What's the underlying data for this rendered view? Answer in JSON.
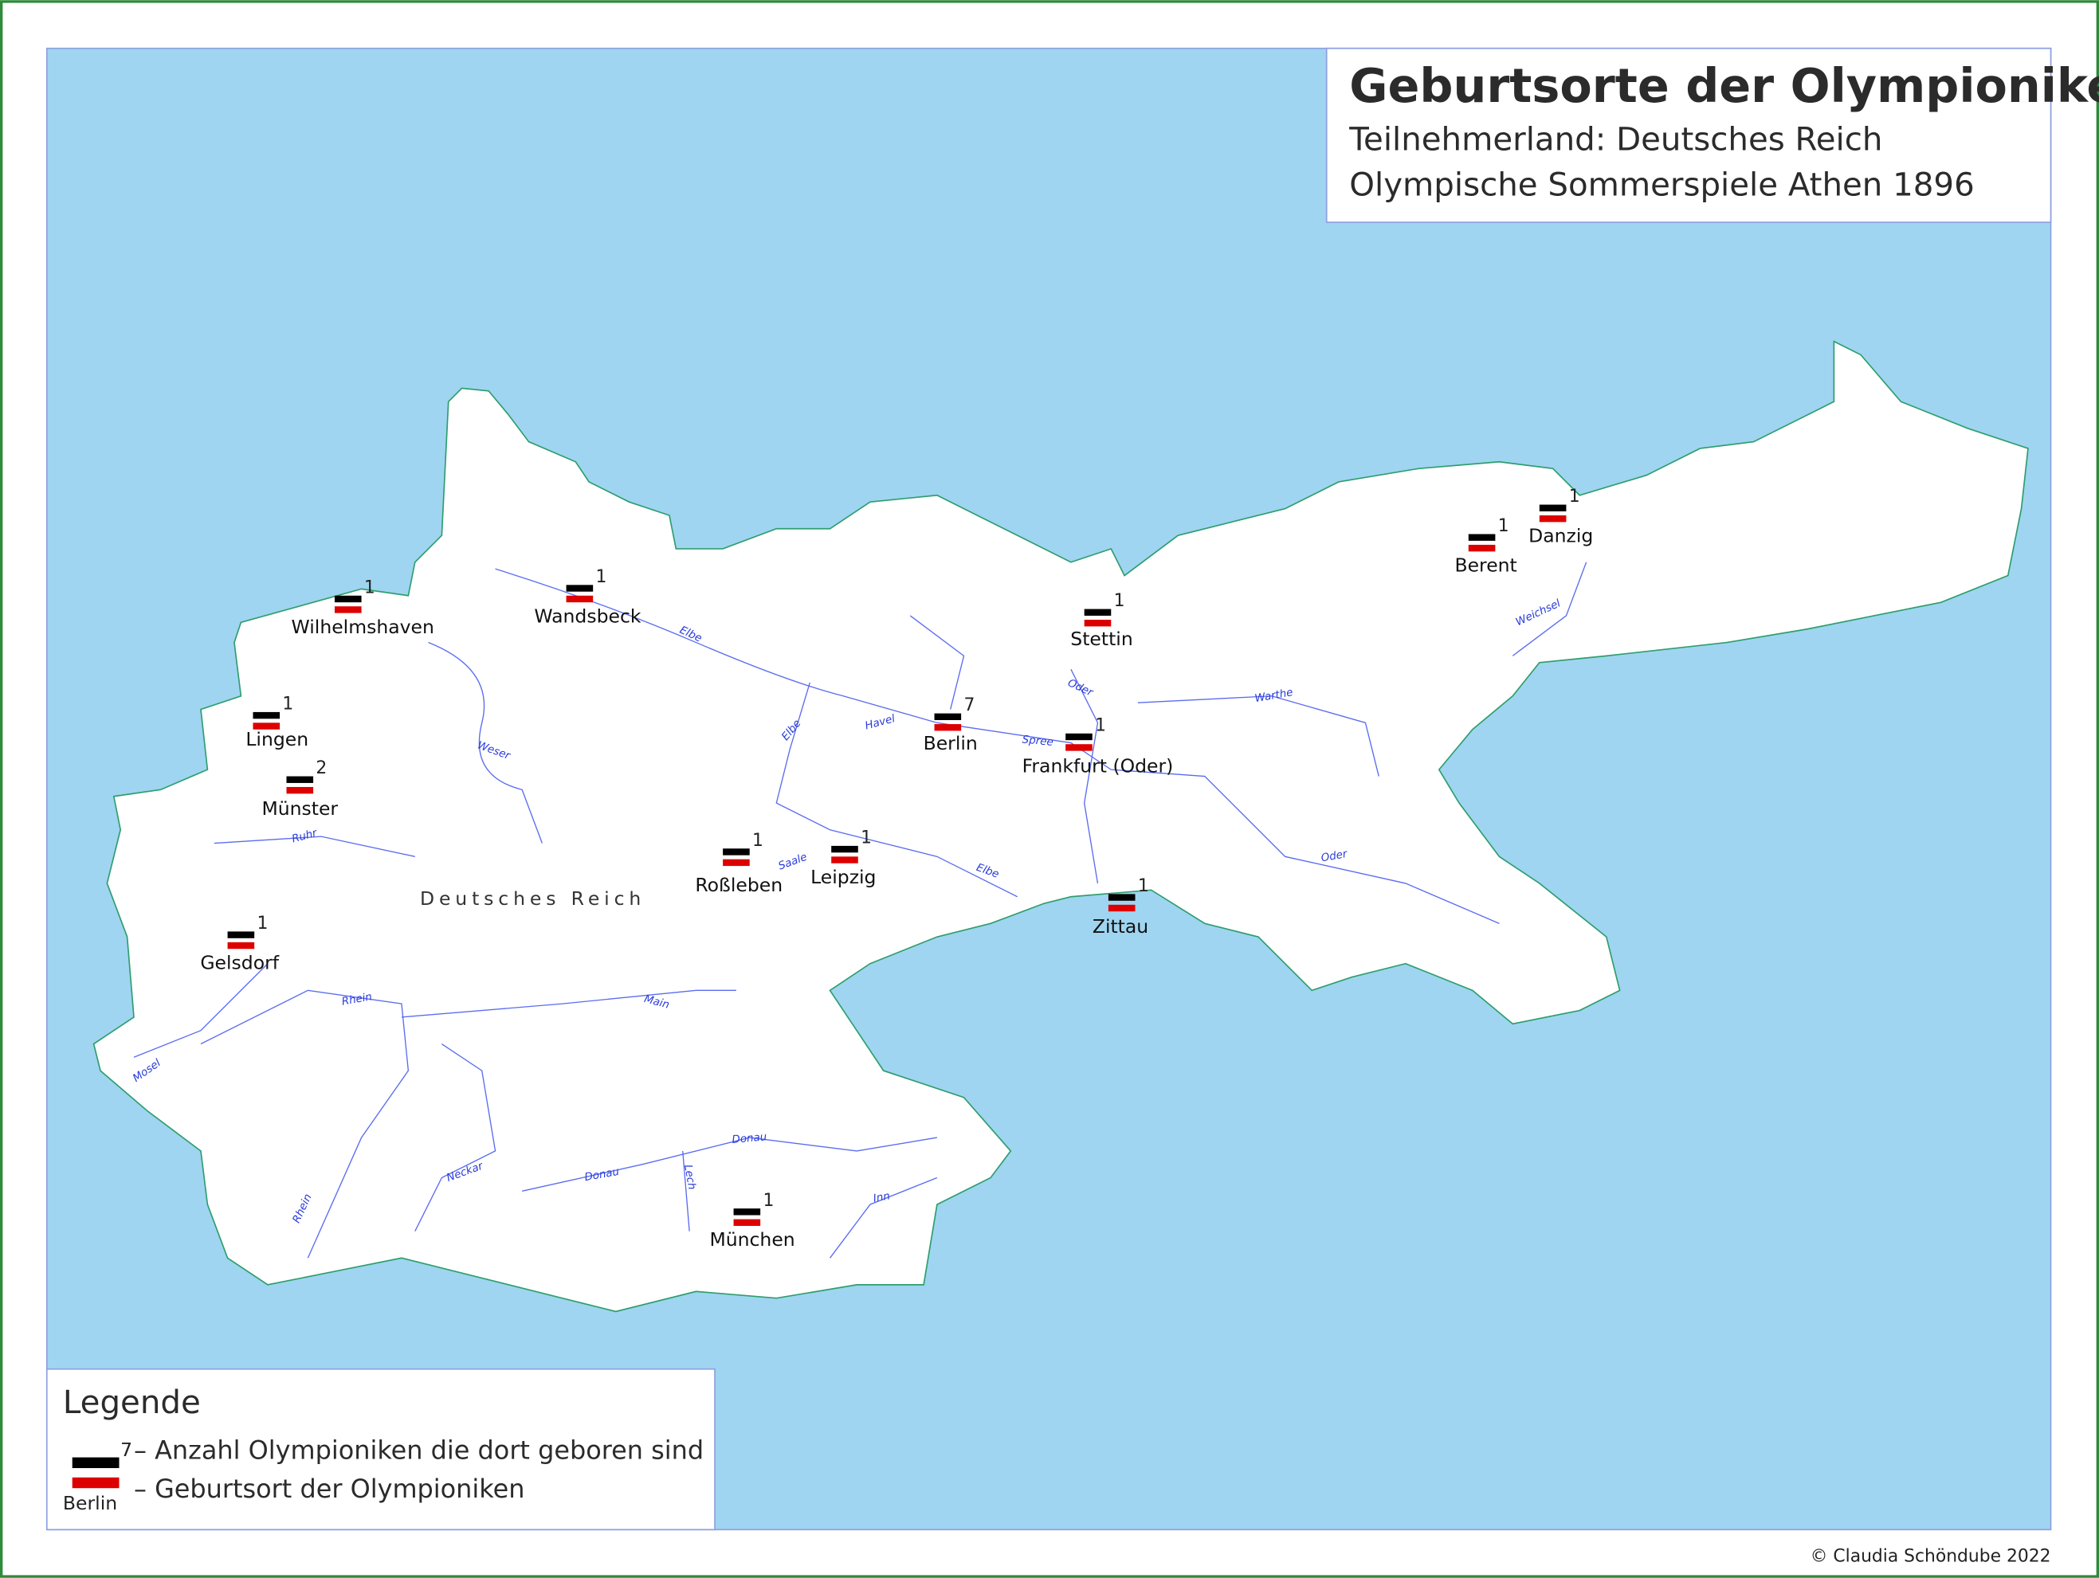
{
  "title": {
    "heading": "Geburtsorte der Olympioniken",
    "line1": "Teilnehmerland: Deutsches Reich",
    "line2": "Olympische Sommerspiele Athen 1896"
  },
  "country_label": "Deutsches Reich",
  "places": [
    {
      "name": "Wilhelmshaven",
      "count": "1"
    },
    {
      "name": "Wandsbeck",
      "count": "1"
    },
    {
      "name": "Stettin",
      "count": "1"
    },
    {
      "name": "Danzig",
      "count": "1"
    },
    {
      "name": "Berent",
      "count": "1"
    },
    {
      "name": "Lingen",
      "count": "1"
    },
    {
      "name": "Münster",
      "count": "2"
    },
    {
      "name": "Berlin",
      "count": "7"
    },
    {
      "name": "Frankfurt (Oder)",
      "count": "1"
    },
    {
      "name": "Roßleben",
      "count": "1"
    },
    {
      "name": "Leipzig",
      "count": "1"
    },
    {
      "name": "Zittau",
      "count": "1"
    },
    {
      "name": "Gelsdorf",
      "count": "1"
    },
    {
      "name": "München",
      "count": "1"
    }
  ],
  "rivers": [
    "Elbe",
    "Weser",
    "Havel",
    "Elbe",
    "Spree",
    "Oder",
    "Warthe",
    "Weichsel",
    "Oder",
    "Saale",
    "Elbe",
    "Ruhr",
    "Rhein",
    "Main",
    "Mosel",
    "Neckar",
    "Donau",
    "Donau",
    "Lech",
    "Inn",
    "Rhein"
  ],
  "legend": {
    "title": "Legende",
    "count_example": "7",
    "count_text": "– Anzahl Olympioniken die dort geboren sind",
    "place_text": "– Geburtsort der  Olympioniken",
    "place_example": "Berlin"
  },
  "copyright": "© Claudia Schöndube 2022",
  "colors": {
    "sea": "#9fd5f0",
    "land": "#ffffff",
    "coast": "#2e9e6e",
    "river": "#5a6cf0",
    "flag_black": "#000000",
    "flag_red": "#dd0000",
    "frame": "#2e8b3a"
  }
}
